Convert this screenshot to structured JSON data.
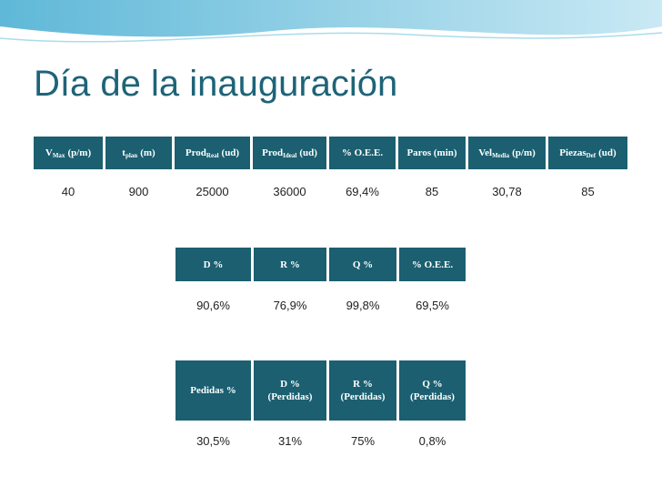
{
  "title": "Día de la inauguración",
  "tables": [
    {
      "headers": [
        {
          "text": "V",
          "sub": "Max",
          "unit": "(p/m)"
        },
        {
          "text": "t",
          "sub": "plan",
          "unit": "(m)"
        },
        {
          "text": "Prod",
          "sub": "Real",
          "unit": "(ud)"
        },
        {
          "text": "Prod",
          "sub": "Ideal",
          "unit": "(ud)"
        },
        {
          "text": "% O.E.E."
        },
        {
          "text": "Paros (min)"
        },
        {
          "text": "Vel",
          "sub": "Media",
          "unit": "(p/m)"
        },
        {
          "text": "Piezas",
          "sub": "Def",
          "unit": "(ud)"
        }
      ],
      "values": [
        "40",
        "900",
        "25000",
        "36000",
        "69,4%",
        "85",
        "30,78",
        "85"
      ]
    },
    {
      "headers": [
        {
          "text": "D %"
        },
        {
          "text": "R %"
        },
        {
          "text": "Q %"
        },
        {
          "text": "% O.E.E."
        }
      ],
      "values": [
        "90,6%",
        "76,9%",
        "99,8%",
        "69,5%"
      ]
    },
    {
      "headers": [
        {
          "text": "Pedidas %"
        },
        {
          "text": "D %",
          "unit": "(Perdidas)"
        },
        {
          "text": "R %",
          "unit": "(Perdidas)"
        },
        {
          "text": "Q %",
          "unit": "(Perdidas)"
        }
      ],
      "values": [
        "30,5%",
        "31%",
        "75%",
        "0,8%"
      ]
    }
  ]
}
